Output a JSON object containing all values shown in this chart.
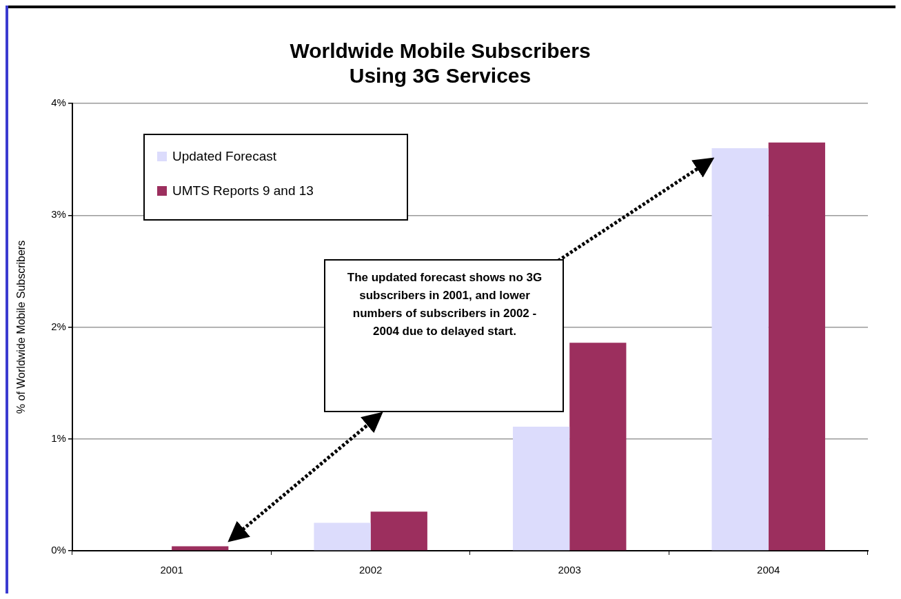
{
  "chart_data": {
    "type": "bar",
    "title": "Worldwide Mobile Subscribers Using 3G Services",
    "ylabel": "% of Worldwide Mobile Subscribers",
    "categories": [
      "2001",
      "2002",
      "2003",
      "2004"
    ],
    "series": [
      {
        "name": "Updated Forecast",
        "color": "#dcdcfc",
        "values": [
          0,
          0.25,
          1.11,
          3.6
        ]
      },
      {
        "name": "UMTS Reports 9 and 13",
        "color": "#9c2f5e",
        "values": [
          0.04,
          0.35,
          1.86,
          3.65
        ]
      }
    ],
    "ylim": [
      0,
      4
    ],
    "yticks": [
      {
        "value": 0,
        "label": "0%"
      },
      {
        "value": 1,
        "label": "1%"
      },
      {
        "value": 2,
        "label": "2%"
      },
      {
        "value": 3,
        "label": "3%"
      },
      {
        "value": 4,
        "label": "4%"
      }
    ],
    "grid": "y",
    "legend": "top left",
    "annotations": [
      "The updated forecast shows no 3G subscribers in 2001, and lower numbers of subscribers in 2002 - 2004 due to delayed start."
    ]
  }
}
